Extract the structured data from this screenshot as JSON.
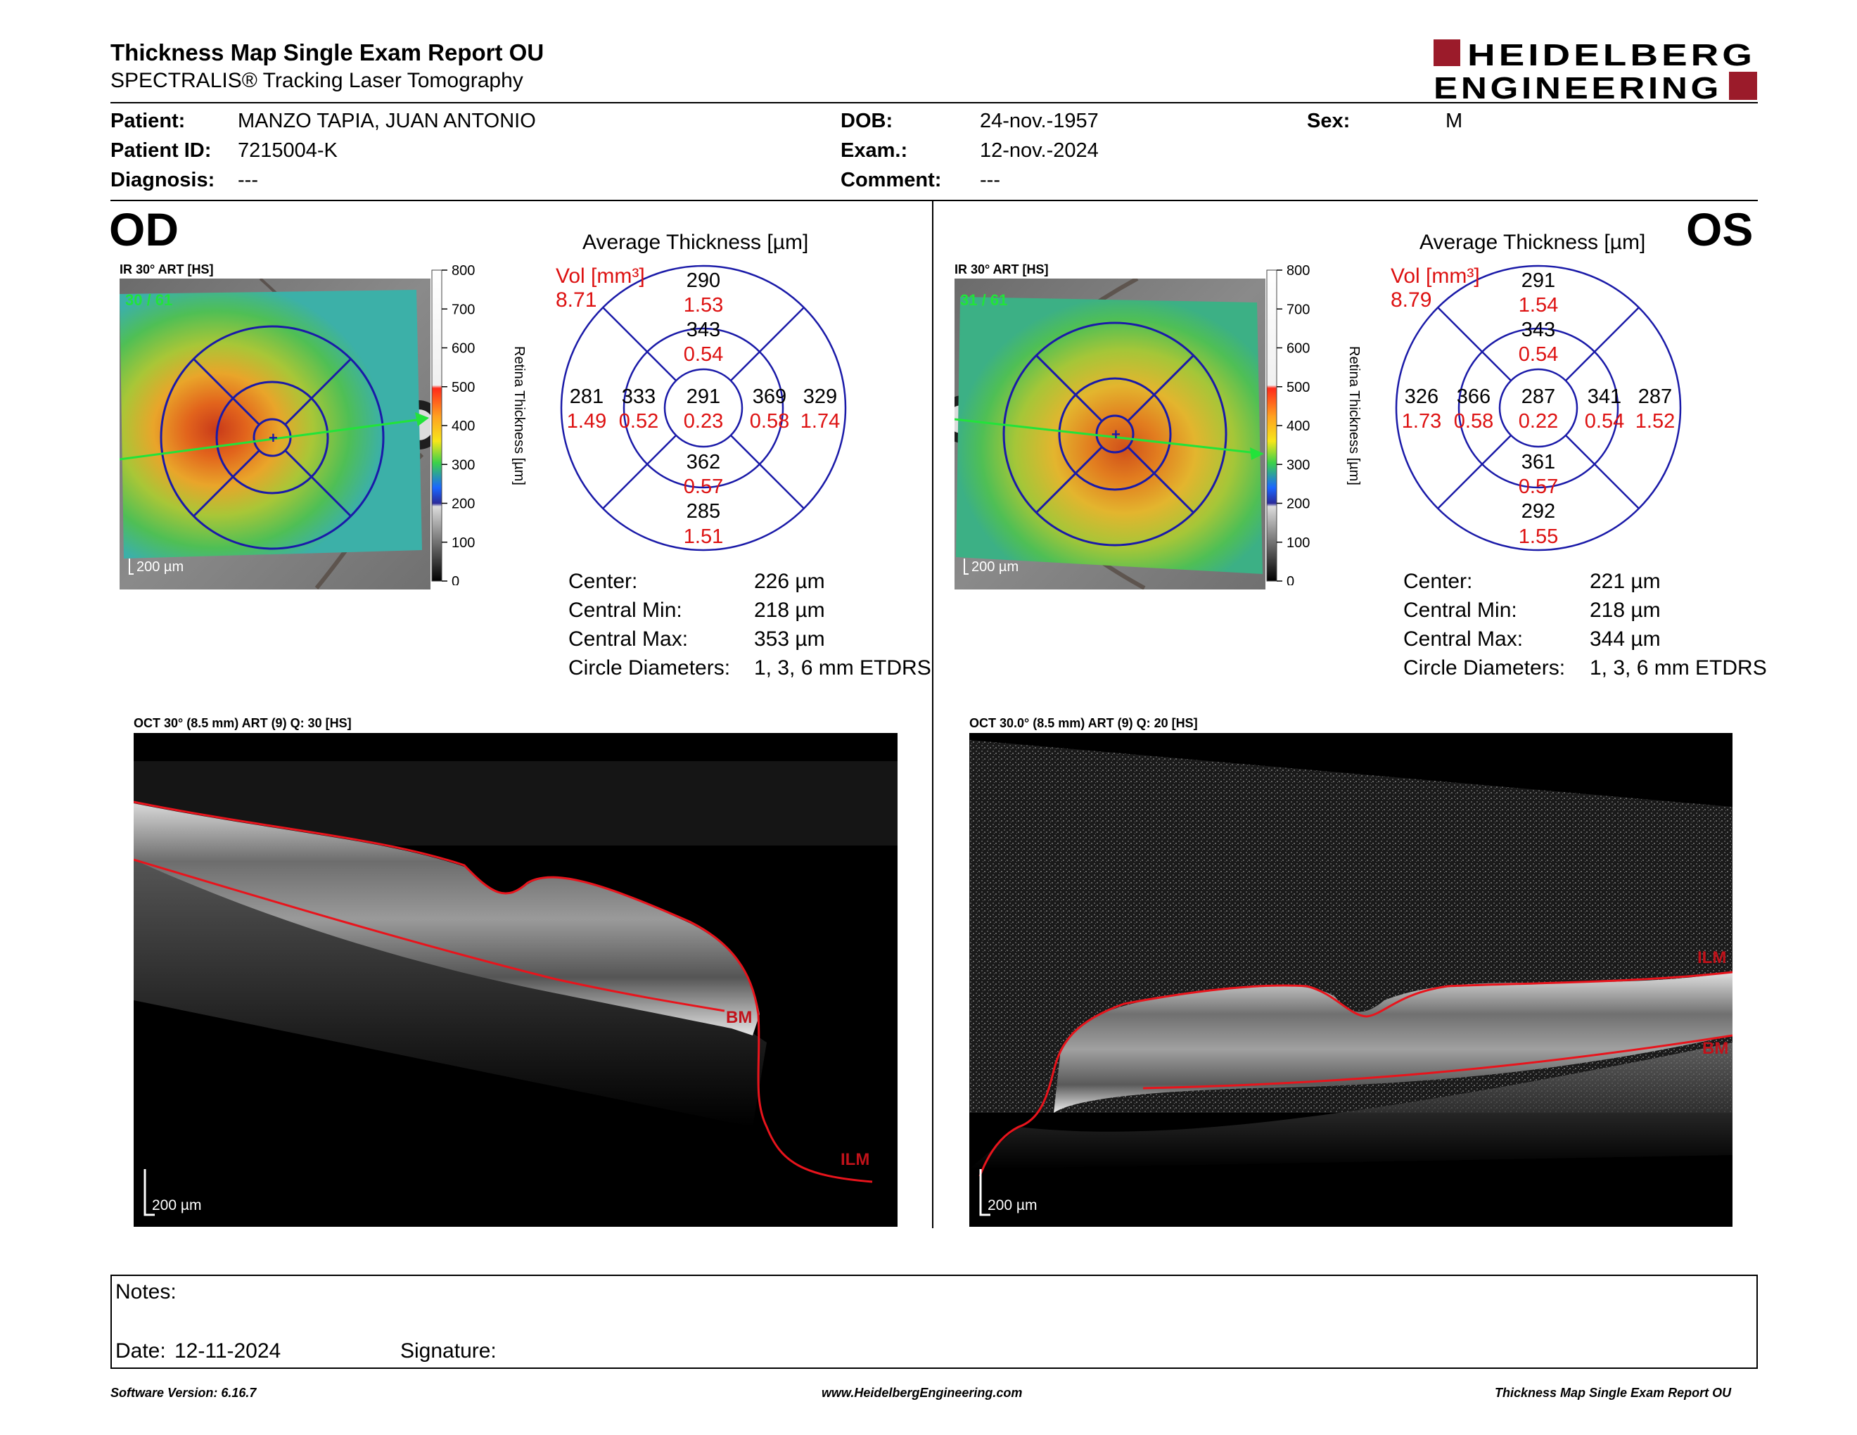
{
  "header": {
    "title": "Thickness Map Single Exam Report OU",
    "subtitle": "SPECTRALIS® Tracking Laser Tomography",
    "logo_line1": "HEIDELBERG",
    "logo_line2": "ENGINEERING"
  },
  "patient": {
    "patient_label": "Patient:",
    "patient_value": "MANZO TAPIA, JUAN ANTONIO",
    "id_label": "Patient ID:",
    "id_value": "7215004-K",
    "diagnosis_label": "Diagnosis:",
    "diagnosis_value": "---",
    "dob_label": "DOB:",
    "dob_value": "24-nov.-1957",
    "exam_label": "Exam.:",
    "exam_value": "12-nov.-2024",
    "comment_label": "Comment:",
    "comment_value": "---",
    "sex_label": "Sex:",
    "sex_value": "M"
  },
  "colors": {
    "vol_red": "#dd1111",
    "circle_blue": "#1a1aa8",
    "logo_red": "#9b1b2a",
    "seg_line": "#e8141c"
  },
  "colorbar": {
    "title": "Retina Thickness [µm]",
    "ticks": [
      "800",
      "700",
      "600",
      "500",
      "400",
      "300",
      "200",
      "100",
      "0"
    ]
  },
  "od": {
    "eye_label": "OD",
    "ir_label": "IR 30° ART [HS]",
    "ir_count": "30 / 61",
    "scale_label": "200 µm",
    "avg_title": "Average Thickness [µm]",
    "vol_label": "Vol [mm³]",
    "vol_total": "8.71",
    "grid": {
      "center": {
        "t": "291",
        "v": "0.23"
      },
      "inner_sup": {
        "t": "343",
        "v": "0.54"
      },
      "inner_inf": {
        "t": "362",
        "v": "0.57"
      },
      "inner_left": {
        "t": "333",
        "v": "0.52"
      },
      "inner_right": {
        "t": "369",
        "v": "0.58"
      },
      "outer_sup": {
        "t": "290",
        "v": "1.53"
      },
      "outer_inf": {
        "t": "285",
        "v": "1.51"
      },
      "outer_left": {
        "t": "281",
        "v": "1.49"
      },
      "outer_right": {
        "t": "329",
        "v": "1.74"
      }
    },
    "stats": {
      "center_label": "Center:",
      "center_value": "226 µm",
      "min_label": "Central Min:",
      "min_value": "218 µm",
      "max_label": "Central Max:",
      "max_value": "353 µm",
      "diam_label": "Circle Diameters:",
      "diam_value": "1, 3, 6 mm ETDRS"
    },
    "oct_label": "OCT 30° (8.5 mm) ART (9) Q: 30 [HS]",
    "oct_scale": "200 µm",
    "seg_ilm": "ILM",
    "seg_bm": "BM"
  },
  "os": {
    "eye_label": "OS",
    "ir_label": "IR 30° ART [HS]",
    "ir_count": "31 / 61",
    "scale_label": "200 µm",
    "avg_title": "Average Thickness [µm]",
    "vol_label": "Vol [mm³]",
    "vol_total": "8.79",
    "grid": {
      "center": {
        "t": "287",
        "v": "0.22"
      },
      "inner_sup": {
        "t": "343",
        "v": "0.54"
      },
      "inner_inf": {
        "t": "361",
        "v": "0.57"
      },
      "inner_left": {
        "t": "366",
        "v": "0.58"
      },
      "inner_right": {
        "t": "341",
        "v": "0.54"
      },
      "outer_sup": {
        "t": "291",
        "v": "1.54"
      },
      "outer_inf": {
        "t": "292",
        "v": "1.55"
      },
      "outer_left": {
        "t": "326",
        "v": "1.73"
      },
      "outer_right": {
        "t": "287",
        "v": "1.52"
      }
    },
    "stats": {
      "center_label": "Center:",
      "center_value": "221 µm",
      "min_label": "Central Min:",
      "min_value": "218 µm",
      "max_label": "Central Max:",
      "max_value": "344 µm",
      "diam_label": "Circle Diameters:",
      "diam_value": "1, 3, 6 mm ETDRS"
    },
    "oct_label": "OCT 30.0° (8.5 mm) ART (9) Q: 20 [HS]",
    "oct_scale": "200 µm",
    "seg_ilm": "ILM",
    "seg_bm": "BM"
  },
  "notes": {
    "notes_label": "Notes:",
    "date_label": "Date:",
    "date_value": "12-11-2024",
    "signature_label": "Signature:"
  },
  "footer": {
    "software": "Software Version: 6.16.7",
    "website": "www.HeidelbergEngineering.com",
    "report": "Thickness Map Single Exam Report OU"
  }
}
